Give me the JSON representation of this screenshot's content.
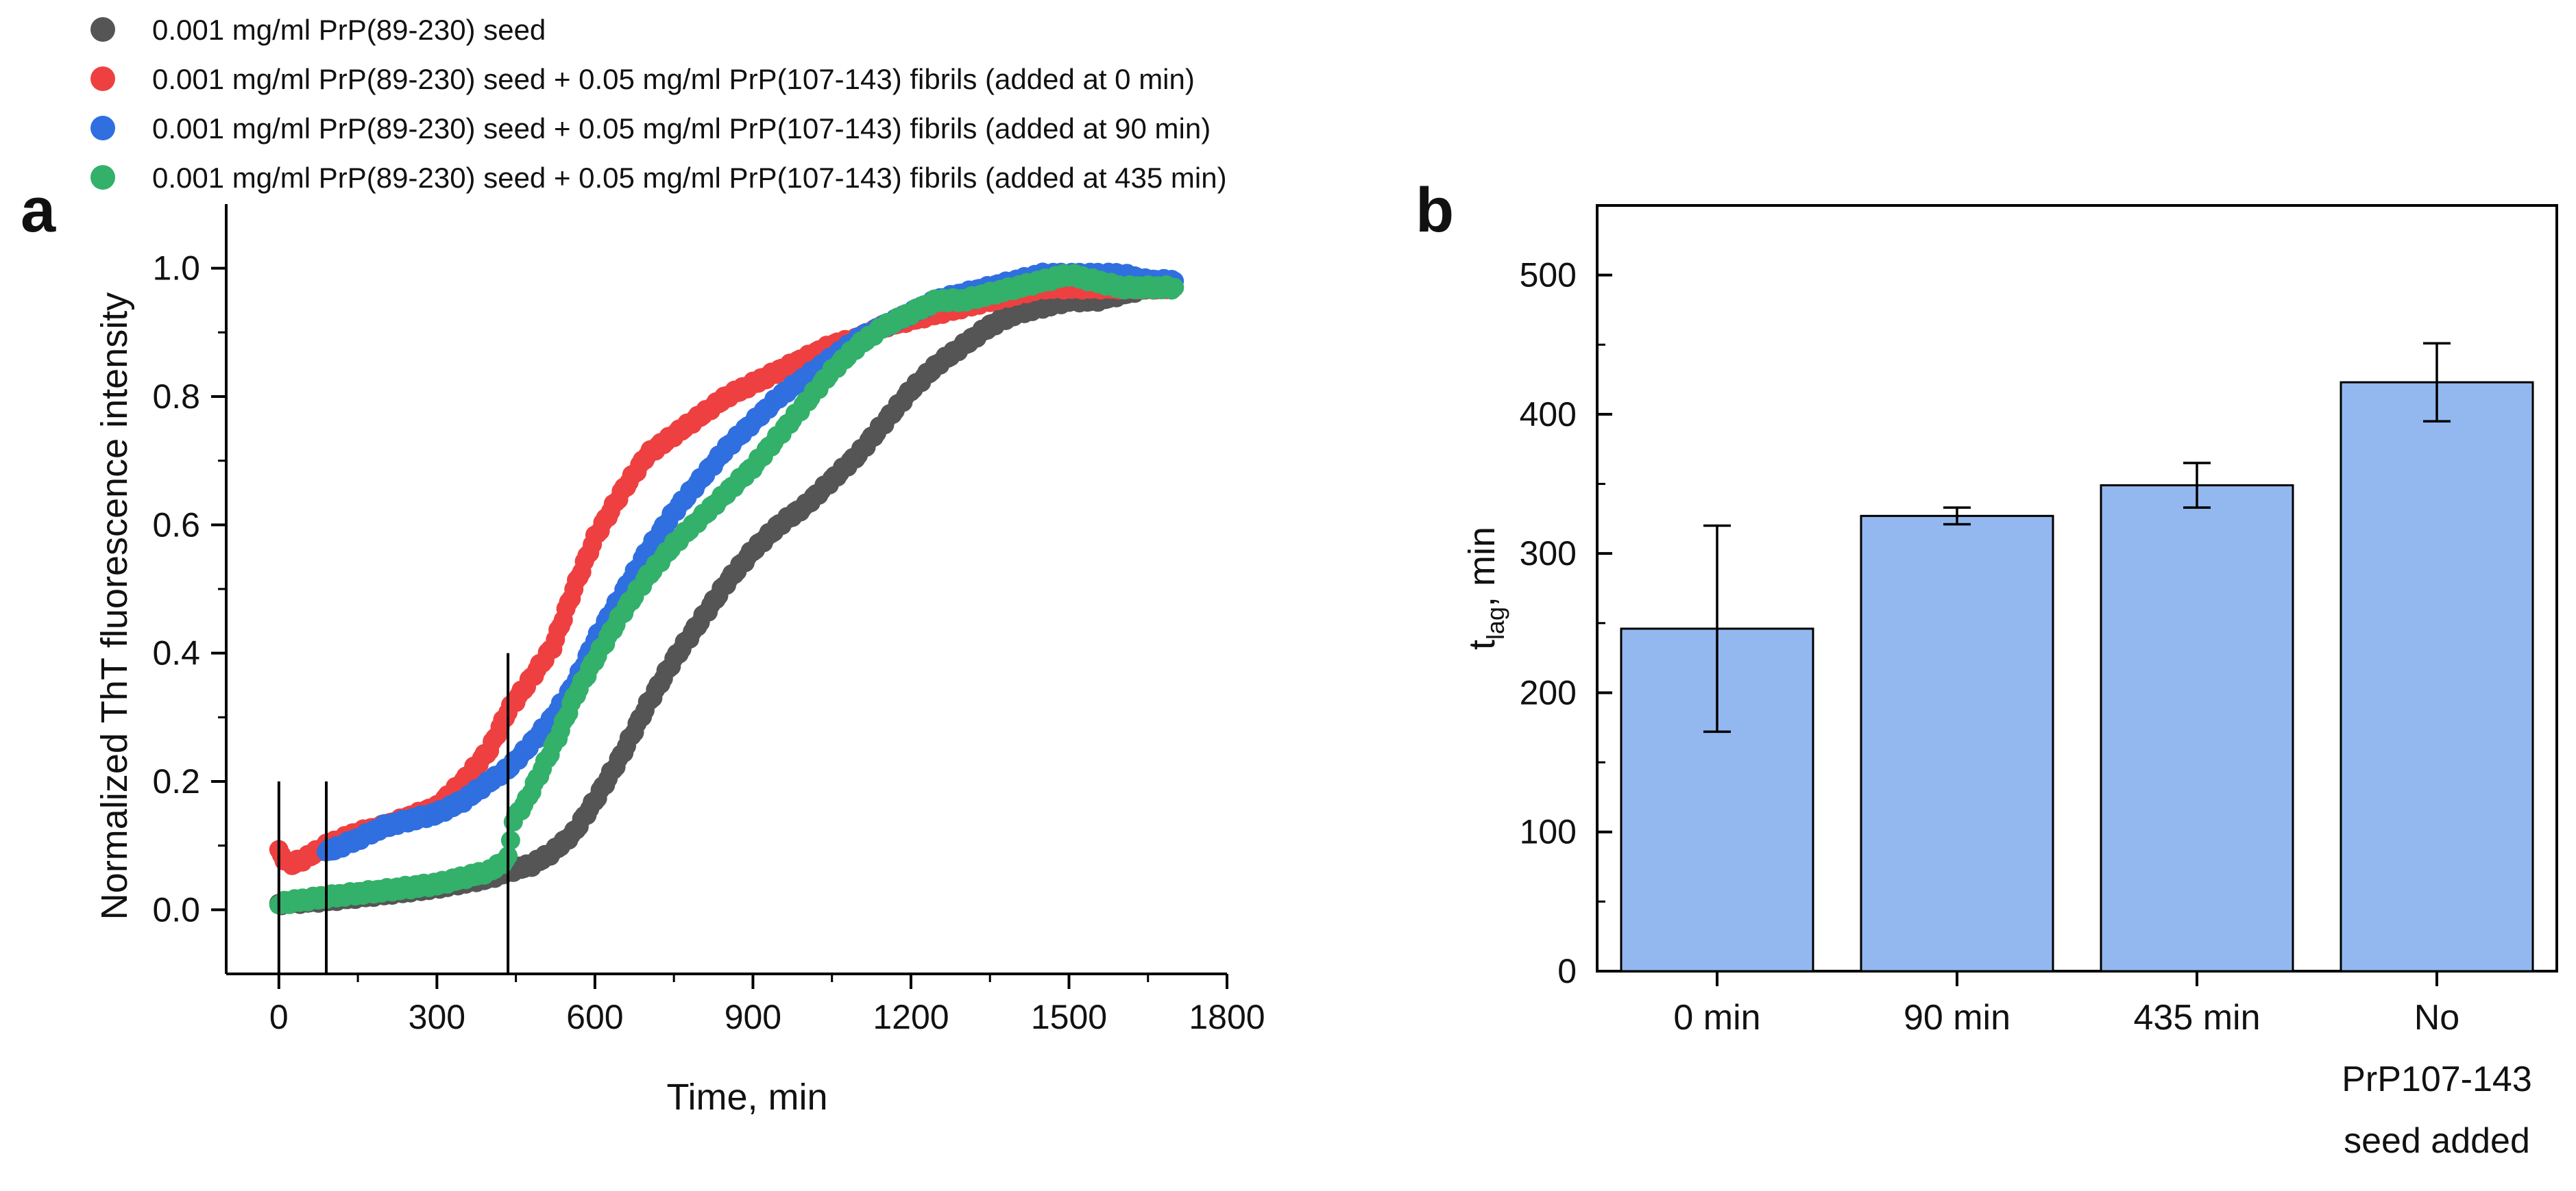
{
  "panels": {
    "a": "a",
    "b": "b"
  },
  "legend": [
    {
      "label": "0.001 mg/ml PrP(89-230) seed",
      "color": "#555555"
    },
    {
      "label": "0.001 mg/ml PrP(89-230) seed + 0.05 mg/ml PrP(107-143) fibrils (added at 0 min)",
      "color": "#ee4040"
    },
    {
      "label": "0.001 mg/ml PrP(89-230) seed + 0.05 mg/ml PrP(107-143) fibrils (added at 90 min)",
      "color": "#2f6fe0"
    },
    {
      "label": "0.001 mg/ml PrP(89-230) seed + 0.05 mg/ml PrP(107-143) fibrils (added at 435 min)",
      "color": "#33b06a"
    }
  ],
  "chart_data": [
    {
      "type": "scatter",
      "panel": "a",
      "title": "",
      "xlabel": "Time, min",
      "ylabel": "Normalized ThT fluorescence intensity",
      "xlim": [
        -100,
        1800
      ],
      "ylim": [
        -0.1,
        1.1
      ],
      "xticks": [
        0,
        300,
        600,
        900,
        1200,
        1500,
        1800
      ],
      "yticks": [
        0.0,
        0.2,
        0.4,
        0.6,
        0.8,
        1.0
      ],
      "ytick_labels": [
        "0.0",
        "0.2",
        "0.4",
        "0.6",
        "0.8",
        "1.0"
      ],
      "vlines": [
        {
          "x": 0,
          "y": [
            -0.1,
            0.2
          ]
        },
        {
          "x": 90,
          "y": [
            -0.1,
            0.2
          ]
        },
        {
          "x": 435,
          "y": [
            -0.1,
            0.4
          ]
        }
      ],
      "series": [
        {
          "name": "0.001 mg/ml PrP(89-230) seed",
          "color": "#555555",
          "x": [
            0,
            90,
            200,
            300,
            400,
            435,
            480,
            520,
            560,
            600,
            650,
            700,
            750,
            800,
            850,
            900,
            950,
            1000,
            1050,
            1100,
            1150,
            1200,
            1250,
            1300,
            1350,
            1400,
            1450,
            1500,
            1550,
            1600,
            1650,
            1700
          ],
          "y": [
            0.01,
            0.015,
            0.025,
            0.035,
            0.05,
            0.06,
            0.07,
            0.09,
            0.12,
            0.17,
            0.24,
            0.32,
            0.39,
            0.45,
            0.51,
            0.56,
            0.6,
            0.63,
            0.67,
            0.71,
            0.76,
            0.81,
            0.85,
            0.88,
            0.91,
            0.93,
            0.94,
            0.95,
            0.95,
            0.96,
            0.97,
            0.97
          ]
        },
        {
          "name": "0.001 mg/ml PrP(89-230) seed + 0.05 mg/ml PrP(107-143) fibrils (added at 0 min)",
          "color": "#ee4040",
          "x": [
            0,
            20,
            50,
            90,
            150,
            200,
            300,
            350,
            400,
            435,
            470,
            520,
            560,
            600,
            650,
            700,
            750,
            800,
            850,
            900,
            950,
            1000,
            1050,
            1100,
            1150,
            1200,
            1250,
            1300,
            1350,
            1400,
            1450,
            1500,
            1550,
            1600,
            1650,
            1700
          ],
          "y": [
            0.09,
            0.07,
            0.08,
            0.1,
            0.12,
            0.13,
            0.16,
            0.2,
            0.25,
            0.31,
            0.35,
            0.41,
            0.5,
            0.58,
            0.65,
            0.71,
            0.74,
            0.77,
            0.8,
            0.82,
            0.84,
            0.86,
            0.88,
            0.89,
            0.91,
            0.92,
            0.93,
            0.94,
            0.95,
            0.96,
            0.97,
            0.97,
            0.97,
            0.97,
            0.97,
            0.97
          ]
        },
        {
          "name": "0.001 mg/ml PrP(89-230) seed + 0.05 mg/ml PrP(107-143) fibrils (added at 90 min)",
          "color": "#2f6fe0",
          "x": [
            90,
            150,
            200,
            300,
            350,
            400,
            435,
            470,
            520,
            560,
            600,
            650,
            700,
            750,
            800,
            850,
            900,
            950,
            1000,
            1050,
            1100,
            1150,
            1200,
            1250,
            1300,
            1350,
            1400,
            1450,
            1500,
            1550,
            1600,
            1650,
            1700
          ],
          "y": [
            0.09,
            0.11,
            0.13,
            0.15,
            0.17,
            0.2,
            0.22,
            0.25,
            0.3,
            0.35,
            0.42,
            0.49,
            0.56,
            0.62,
            0.67,
            0.72,
            0.76,
            0.8,
            0.83,
            0.86,
            0.89,
            0.91,
            0.93,
            0.95,
            0.96,
            0.97,
            0.98,
            0.99,
            0.99,
            0.99,
            0.99,
            0.98,
            0.98
          ]
        },
        {
          "name": "0.001 mg/ml PrP(89-230) seed + 0.05 mg/ml PrP(107-143) fibrils (added at 435 min)",
          "color": "#33b06a",
          "x": [
            0,
            90,
            200,
            300,
            400,
            435,
            445,
            470,
            500,
            530,
            560,
            600,
            650,
            700,
            750,
            800,
            850,
            900,
            950,
            1000,
            1050,
            1100,
            1150,
            1200,
            1250,
            1300,
            1350,
            1400,
            1450,
            1500,
            1550,
            1600,
            1650,
            1700
          ],
          "y": [
            0.01,
            0.02,
            0.03,
            0.04,
            0.06,
            0.08,
            0.14,
            0.17,
            0.22,
            0.27,
            0.33,
            0.39,
            0.46,
            0.52,
            0.57,
            0.61,
            0.65,
            0.69,
            0.74,
            0.79,
            0.84,
            0.88,
            0.91,
            0.93,
            0.95,
            0.95,
            0.96,
            0.97,
            0.98,
            0.99,
            0.98,
            0.97,
            0.97,
            0.97
          ]
        }
      ]
    },
    {
      "type": "bar",
      "panel": "b",
      "title": "",
      "xlabel": "",
      "ylabel": "t_lag, min",
      "ylabel_main": "t",
      "ylabel_sub": "lag",
      "ylabel_rest": ", min",
      "categories": [
        "0 min",
        "90 min",
        "435 min",
        "No PrP107-143 seed added"
      ],
      "category_lines": [
        [
          "0 min"
        ],
        [
          "90 min"
        ],
        [
          "435 min"
        ],
        [
          "No",
          "PrP107-143",
          "seed added"
        ]
      ],
      "values": [
        246,
        327,
        349,
        423
      ],
      "errors": [
        74,
        6,
        16,
        28
      ],
      "ylim": [
        0,
        550
      ],
      "yticks": [
        0,
        100,
        200,
        300,
        400,
        500
      ],
      "color": "#93b8f0"
    }
  ]
}
